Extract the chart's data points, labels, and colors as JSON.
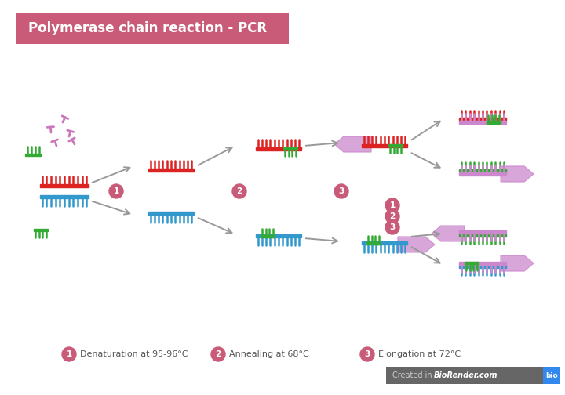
{
  "title": "Polymerase chain reaction - PCR",
  "title_bg": "#c95b78",
  "title_color": "#ffffff",
  "bg_color": "#ffffff",
  "step_labels": [
    "Denaturation at 95-96°C",
    "Annealing at 68°C",
    "Elongation at 72°C"
  ],
  "step_color": "#c95b78",
  "arrow_color": "#999999",
  "red": "#dd2222",
  "blue": "#3399cc",
  "green": "#33aa33",
  "purple": "#cc77bb",
  "pink": "#cc88cc",
  "footer_bg": "#666666",
  "footer_text_color": "#ffffff",
  "biorend_blue": "#3388ee"
}
